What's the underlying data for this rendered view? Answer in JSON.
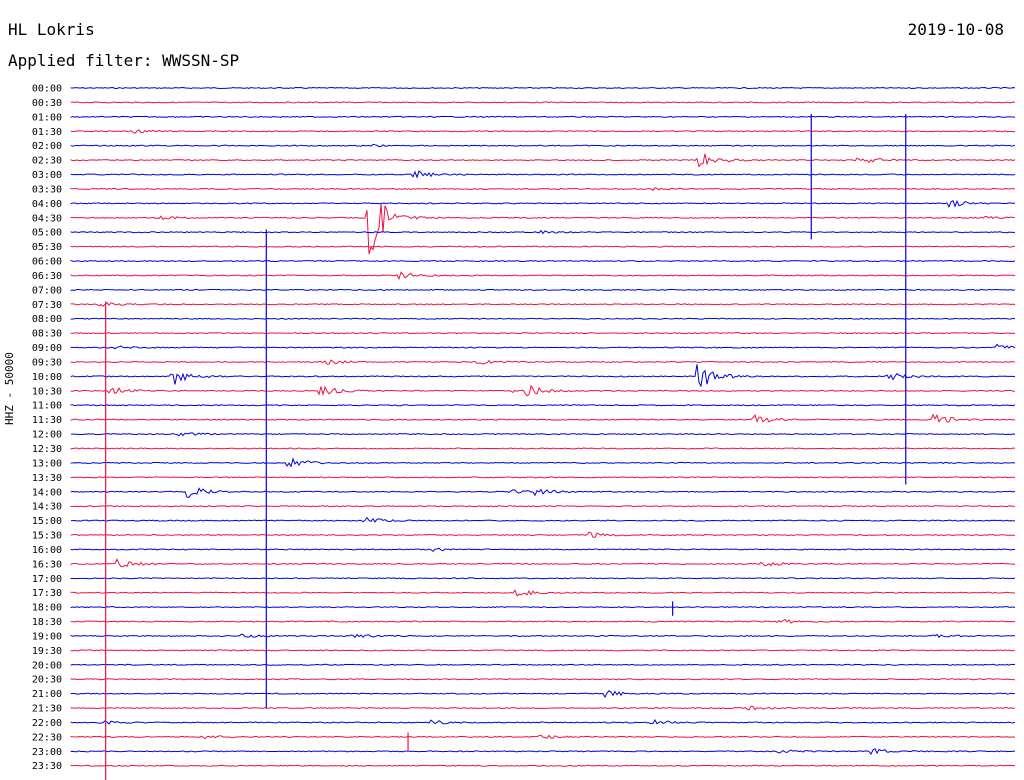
{
  "header": {
    "station": "HL Lokris",
    "date": "2019-10-08",
    "filter_text": "Applied filter: WWSSN-SP"
  },
  "chart_data": {
    "type": "line",
    "title": "HL Lokris 2019-10-08",
    "channel_label": "HHZ - 50000",
    "row_colors": [
      "#0000dd",
      "#ee1144"
    ],
    "rows": [
      "00:00",
      "00:30",
      "01:00",
      "01:30",
      "02:00",
      "02:30",
      "03:00",
      "03:30",
      "04:00",
      "04:30",
      "05:00",
      "05:30",
      "06:00",
      "06:30",
      "07:00",
      "07:30",
      "08:00",
      "08:30",
      "09:00",
      "09:30",
      "10:00",
      "10:30",
      "11:00",
      "11:30",
      "12:00",
      "12:30",
      "13:00",
      "13:30",
      "14:00",
      "14:30",
      "15:00",
      "15:30",
      "16:00",
      "16:30",
      "17:00",
      "17:30",
      "18:00",
      "18:30",
      "19:00",
      "19:30",
      "20:00",
      "20:30",
      "21:00",
      "21:30",
      "22:00",
      "22:30",
      "23:00",
      "23:30"
    ],
    "minutes_per_row": 30,
    "events": [
      {
        "row": 3,
        "minute": 2.0,
        "amp": 0.3
      },
      {
        "row": 4,
        "minute": 9.5,
        "amp": 0.2
      },
      {
        "row": 5,
        "minute": 20.0,
        "amp": 1.6
      },
      {
        "row": 5,
        "minute": 25.0,
        "amp": 0.8
      },
      {
        "row": 6,
        "minute": 11.0,
        "amp": 0.6
      },
      {
        "row": 7,
        "minute": 18.5,
        "amp": 0.2
      },
      {
        "row": 8,
        "minute": 28.0,
        "amp": 0.5
      },
      {
        "row": 9,
        "minute": 9.5,
        "amp": 7.0
      },
      {
        "row": 9,
        "minute": 2.8,
        "amp": 0.3
      },
      {
        "row": 9,
        "minute": 29.0,
        "amp": 0.2
      },
      {
        "row": 10,
        "minute": 15.0,
        "amp": 0.2
      },
      {
        "row": 13,
        "minute": 10.5,
        "amp": 0.5
      },
      {
        "row": 15,
        "minute": 1.0,
        "amp": 0.3
      },
      {
        "row": 18,
        "minute": 1.5,
        "amp": 0.3
      },
      {
        "row": 18,
        "minute": 29.5,
        "amp": 0.5
      },
      {
        "row": 19,
        "minute": 8.2,
        "amp": 0.4
      },
      {
        "row": 19,
        "minute": 13.0,
        "amp": 0.3
      },
      {
        "row": 20,
        "minute": 3.3,
        "amp": 1.3
      },
      {
        "row": 20,
        "minute": 20.0,
        "amp": 2.0
      },
      {
        "row": 20,
        "minute": 26.0,
        "amp": 0.8
      },
      {
        "row": 21,
        "minute": 1.3,
        "amp": 0.6
      },
      {
        "row": 21,
        "minute": 8.0,
        "amp": 0.9
      },
      {
        "row": 21,
        "minute": 14.0,
        "amp": 0.3
      },
      {
        "row": 21,
        "minute": 14.5,
        "amp": 0.9
      },
      {
        "row": 23,
        "minute": 21.8,
        "amp": 0.7
      },
      {
        "row": 23,
        "minute": 27.5,
        "amp": 0.9
      },
      {
        "row": 24,
        "minute": 3.5,
        "amp": 0.4
      },
      {
        "row": 26,
        "minute": 7.0,
        "amp": 0.8
      },
      {
        "row": 28,
        "minute": 3.8,
        "amp": 0.9
      },
      {
        "row": 28,
        "minute": 14.0,
        "amp": 0.3
      },
      {
        "row": 28,
        "minute": 14.8,
        "amp": 0.5
      },
      {
        "row": 30,
        "minute": 9.4,
        "amp": 0.5
      },
      {
        "row": 31,
        "minute": 16.5,
        "amp": 0.4
      },
      {
        "row": 32,
        "minute": 11.5,
        "amp": 0.4
      },
      {
        "row": 33,
        "minute": 1.6,
        "amp": 0.7
      },
      {
        "row": 33,
        "minute": 22.0,
        "amp": 0.4
      },
      {
        "row": 35,
        "minute": 14.2,
        "amp": 0.6
      },
      {
        "row": 37,
        "minute": 22.5,
        "amp": 0.4
      },
      {
        "row": 38,
        "minute": 5.5,
        "amp": 0.3
      },
      {
        "row": 38,
        "minute": 9.0,
        "amp": 0.3
      },
      {
        "row": 38,
        "minute": 27.5,
        "amp": 0.3
      },
      {
        "row": 42,
        "minute": 17.0,
        "amp": 0.5
      },
      {
        "row": 43,
        "minute": 21.5,
        "amp": 0.3
      },
      {
        "row": 44,
        "minute": 1.0,
        "amp": 0.3
      },
      {
        "row": 44,
        "minute": 11.5,
        "amp": 0.4
      },
      {
        "row": 44,
        "minute": 18.5,
        "amp": 0.4
      },
      {
        "row": 45,
        "minute": 4.2,
        "amp": 0.4
      },
      {
        "row": 45,
        "minute": 15.0,
        "amp": 0.3
      },
      {
        "row": 46,
        "minute": 25.5,
        "amp": 0.5
      },
      {
        "row": 46,
        "minute": 22.5,
        "amp": 0.3
      }
    ],
    "spikes": [
      {
        "row": 2,
        "minute": 23.5,
        "amp_up": 0.2,
        "amp_down": 8.5
      },
      {
        "row": 2,
        "minute": 26.5,
        "amp_up": 0.2,
        "amp_down": 25.5
      },
      {
        "row": 10,
        "minute": 6.2,
        "amp_up": 0.2,
        "amp_down": 33.0
      },
      {
        "row": 15,
        "minute": 1.1,
        "amp_up": 0.2,
        "amp_down": 33.0
      },
      {
        "row": 36,
        "minute": 19.1,
        "amp_up": 0.4,
        "amp_down": 0.6
      },
      {
        "row": 45,
        "minute": 10.7,
        "amp_up": 0.3,
        "amp_down": 1.0
      }
    ]
  }
}
